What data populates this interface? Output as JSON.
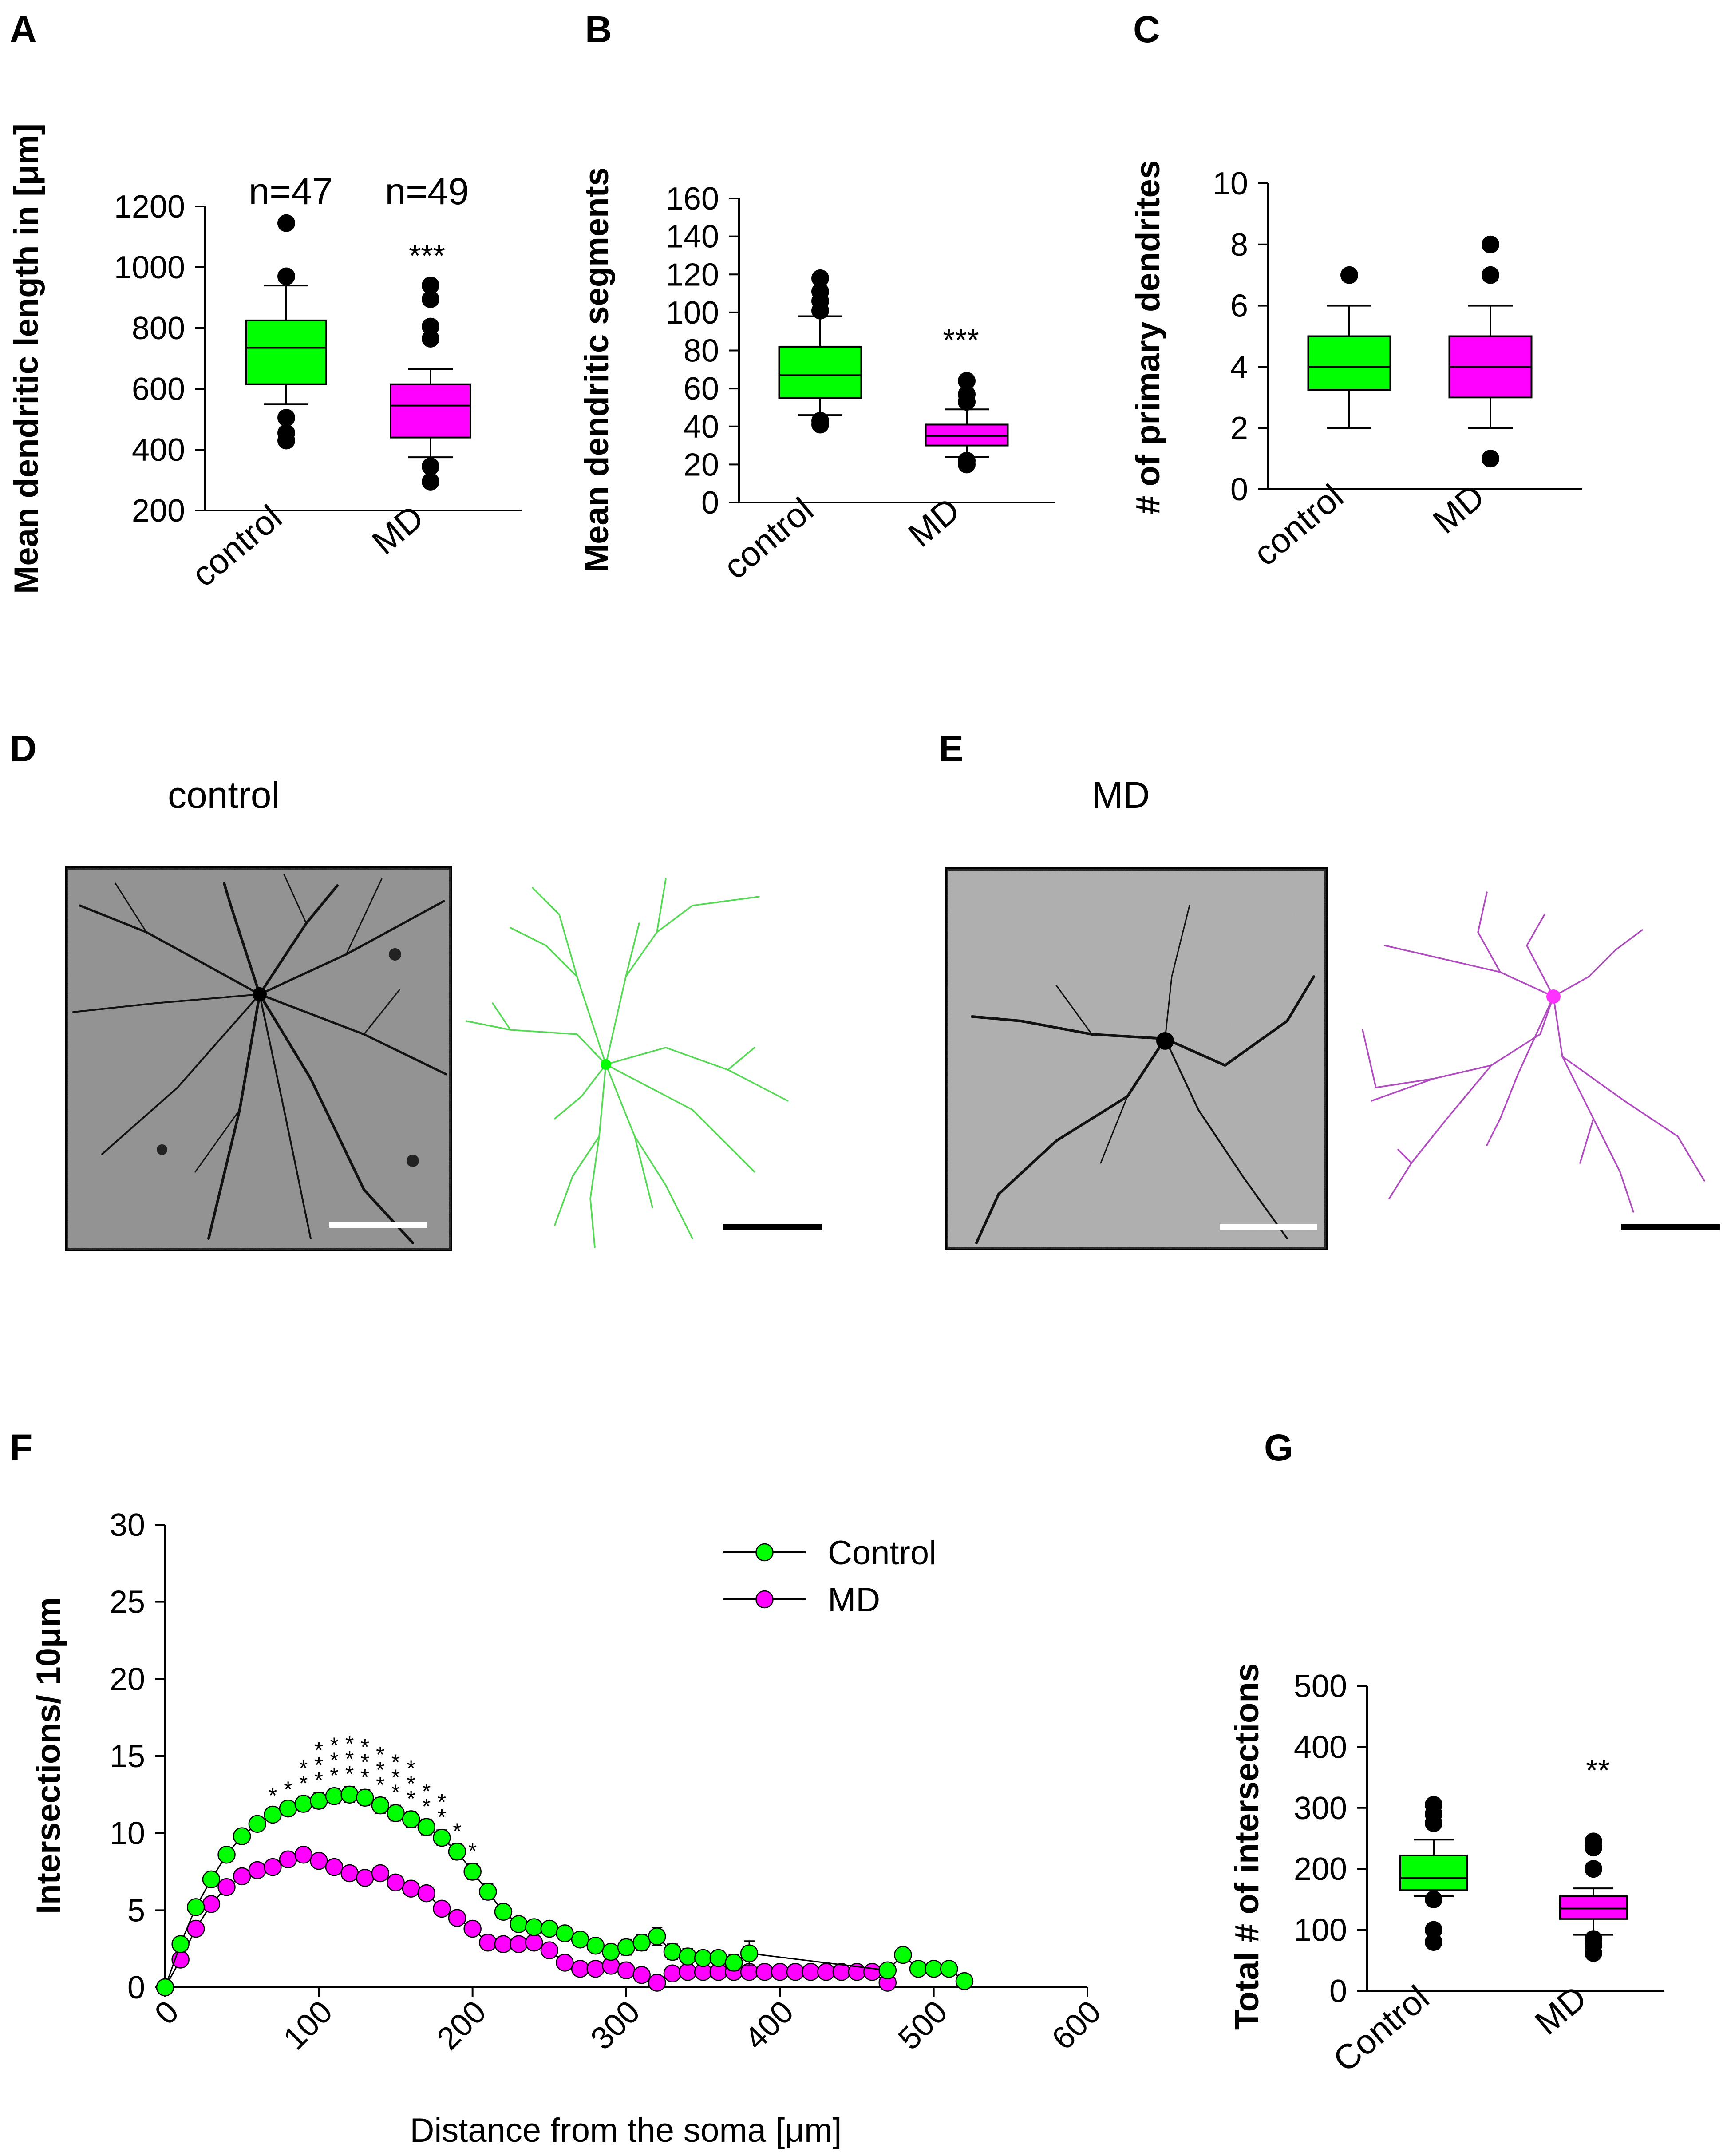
{
  "panels": {
    "A": "A",
    "B": "B",
    "C": "C",
    "D": "D",
    "E": "E",
    "F": "F",
    "G": "G"
  },
  "colors": {
    "control": "#00ff00",
    "md": "#ff00ff",
    "axis": "#000000"
  },
  "labels": {
    "D_title": "control",
    "E_title": "MD"
  },
  "chart_data": [
    {
      "id": "A",
      "type": "box",
      "ylabel": "Mean dendritic length in [μm]",
      "ylim": [
        200,
        1200
      ],
      "yticks": [
        200,
        400,
        600,
        800,
        1000,
        1200
      ],
      "categories": [
        "control",
        "MD"
      ],
      "annotations": {
        "n_control": "n=47",
        "n_md": "n=49",
        "sig_md": "***"
      },
      "boxes": [
        {
          "name": "control",
          "whisker_low": 550,
          "q1": 615,
          "median": 735,
          "q3": 825,
          "whisker_high": 940,
          "outliers": [
            1145,
            970,
            505,
            455,
            430
          ]
        },
        {
          "name": "MD",
          "whisker_low": 375,
          "q1": 440,
          "median": 545,
          "q3": 615,
          "whisker_high": 665,
          "outliers": [
            940,
            895,
            805,
            765,
            345,
            295
          ]
        }
      ]
    },
    {
      "id": "B",
      "type": "box",
      "ylabel": "Mean dendritic segments",
      "ylim": [
        0,
        160
      ],
      "yticks": [
        0,
        20,
        40,
        60,
        80,
        100,
        120,
        140,
        160
      ],
      "categories": [
        "control",
        "MD"
      ],
      "annotations": {
        "sig_md": "***"
      },
      "boxes": [
        {
          "name": "control",
          "whisker_low": 46,
          "q1": 55,
          "median": 67,
          "q3": 82,
          "whisker_high": 98,
          "outliers": [
            118,
            111,
            106,
            101,
            43,
            41
          ]
        },
        {
          "name": "MD",
          "whisker_low": 24,
          "q1": 30,
          "median": 35,
          "q3": 41,
          "whisker_high": 49,
          "outliers": [
            64,
            57,
            53,
            22,
            20
          ]
        }
      ]
    },
    {
      "id": "C",
      "type": "box",
      "ylabel": "# of primary dendrites",
      "ylim": [
        0,
        10
      ],
      "yticks": [
        0,
        2,
        4,
        6,
        8,
        10
      ],
      "categories": [
        "control",
        "MD"
      ],
      "boxes": [
        {
          "name": "control",
          "whisker_low": 2,
          "q1": 3.25,
          "median": 4,
          "q3": 5,
          "whisker_high": 6,
          "outliers": [
            7
          ]
        },
        {
          "name": "MD",
          "whisker_low": 2,
          "q1": 3,
          "median": 4,
          "q3": 5,
          "whisker_high": 6,
          "outliers": [
            8,
            7,
            1
          ]
        }
      ]
    },
    {
      "id": "F",
      "type": "line",
      "xlabel": "Distance from the soma [μm]",
      "ylabel": "Intersections/ 10μm",
      "xlim": [
        0,
        600
      ],
      "ylim": [
        0,
        30
      ],
      "xticks": [
        0,
        100,
        200,
        300,
        400,
        500,
        600
      ],
      "yticks": [
        0,
        5,
        10,
        15,
        20,
        25,
        30
      ],
      "legend": [
        "Control",
        "MD"
      ],
      "legend_position": "top-right",
      "series": [
        {
          "name": "Control",
          "x": [
            0,
            10,
            20,
            30,
            40,
            50,
            60,
            70,
            80,
            90,
            100,
            110,
            120,
            130,
            140,
            150,
            160,
            170,
            180,
            190,
            200,
            210,
            220,
            230,
            240,
            250,
            260,
            270,
            280,
            290,
            300,
            310,
            320,
            330,
            340,
            350,
            360,
            370,
            380,
            470,
            480,
            490,
            500,
            510,
            520
          ],
          "y": [
            0,
            2.8,
            5.2,
            7,
            8.6,
            9.8,
            10.6,
            11.2,
            11.6,
            11.9,
            12.1,
            12.4,
            12.5,
            12.3,
            11.8,
            11.3,
            10.9,
            10.4,
            9.7,
            8.8,
            7.5,
            6.2,
            4.9,
            4.1,
            3.9,
            3.8,
            3.5,
            3.1,
            2.7,
            2.3,
            2.6,
            2.9,
            3.3,
            2.3,
            2.0,
            1.9,
            1.9,
            1.6,
            2.2,
            1.1,
            2.1,
            1.2,
            1.2,
            1.2,
            0.4
          ],
          "err": [
            0,
            0.3,
            0.4,
            0.4,
            0.4,
            0.4,
            0.4,
            0.4,
            0.4,
            0.5,
            0.5,
            0.5,
            0.5,
            0.5,
            0.5,
            0.5,
            0.5,
            0.5,
            0.5,
            0.5,
            0.5,
            0.5,
            0.4,
            0.4,
            0.4,
            0.4,
            0.4,
            0.4,
            0.4,
            0.4,
            0.5,
            0.5,
            0.6,
            0.5,
            0.5,
            0.5,
            0.5,
            0.5,
            0.8,
            0,
            0,
            0,
            0,
            0,
            0
          ]
        },
        {
          "name": "MD",
          "x": [
            0,
            10,
            20,
            30,
            40,
            50,
            60,
            70,
            80,
            90,
            100,
            110,
            120,
            130,
            140,
            150,
            160,
            170,
            180,
            190,
            200,
            210,
            220,
            230,
            240,
            250,
            260,
            270,
            280,
            290,
            300,
            310,
            320,
            330,
            340,
            350,
            360,
            370,
            380,
            390,
            400,
            410,
            420,
            430,
            440,
            450,
            460,
            470
          ],
          "y": [
            0,
            1.8,
            3.8,
            5.4,
            6.5,
            7.2,
            7.6,
            7.8,
            8.3,
            8.6,
            8.2,
            7.8,
            7.4,
            7.1,
            7.4,
            6.8,
            6.4,
            6.1,
            5.1,
            4.5,
            3.8,
            2.9,
            2.8,
            2.8,
            2.9,
            2.4,
            1.6,
            1.2,
            1.2,
            1.4,
            1.1,
            0.8,
            0.3,
            0.9,
            1.0,
            1.0,
            1.0,
            1.0,
            1.0,
            1.0,
            1.0,
            1.0,
            1.0,
            1.0,
            1.0,
            1.0,
            1.0,
            0.3
          ],
          "err": [
            0,
            0.3,
            0.4,
            0.4,
            0.4,
            0.4,
            0.4,
            0.4,
            0.4,
            0.4,
            0.4,
            0.4,
            0.4,
            0.4,
            0.4,
            0.4,
            0.4,
            0.4,
            0.4,
            0.4,
            0.4,
            0.4,
            0.4,
            0.4,
            0.4,
            0.4,
            0.3,
            0.3,
            0.3,
            0.3,
            0.3,
            0.3,
            0.3,
            0.3,
            0.3,
            0.3,
            0.3,
            0.3,
            0.3,
            0.3,
            0.3,
            0.3,
            0.3,
            0.3,
            0.3,
            0.3,
            0.3,
            0.3
          ]
        }
      ],
      "significance": [
        {
          "x": 70,
          "stars": "*"
        },
        {
          "x": 80,
          "stars": "*"
        },
        {
          "x": 90,
          "stars": "**"
        },
        {
          "x": 100,
          "stars": "***"
        },
        {
          "x": 110,
          "stars": "***"
        },
        {
          "x": 120,
          "stars": "***"
        },
        {
          "x": 130,
          "stars": "***"
        },
        {
          "x": 140,
          "stars": "***"
        },
        {
          "x": 150,
          "stars": "***"
        },
        {
          "x": 160,
          "stars": "***"
        },
        {
          "x": 170,
          "stars": "**"
        },
        {
          "x": 180,
          "stars": "**"
        },
        {
          "x": 190,
          "stars": "*"
        },
        {
          "x": 200,
          "stars": "*"
        }
      ]
    },
    {
      "id": "G",
      "type": "box",
      "ylabel": "Total # of intersections",
      "ylim": [
        0,
        500
      ],
      "yticks": [
        0,
        100,
        200,
        300,
        400,
        500
      ],
      "categories": [
        "Control",
        "MD"
      ],
      "annotations": {
        "sig_md": "**"
      },
      "boxes": [
        {
          "name": "Control",
          "whisker_low": 155,
          "q1": 165,
          "median": 185,
          "q3": 222,
          "whisker_high": 248,
          "outliers": [
            305,
            290,
            275,
            150,
            100,
            80
          ]
        },
        {
          "name": "MD",
          "whisker_low": 92,
          "q1": 118,
          "median": 135,
          "q3": 155,
          "whisker_high": 168,
          "outliers": [
            245,
            235,
            200,
            85,
            75,
            62
          ]
        }
      ]
    }
  ]
}
